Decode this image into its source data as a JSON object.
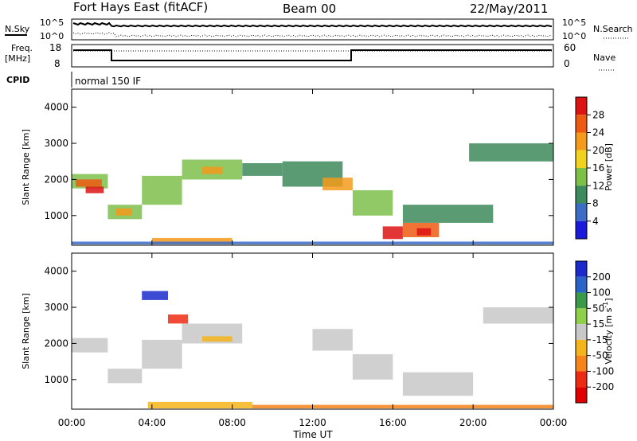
{
  "header": {
    "station": "Fort Hays East (fitACF)",
    "beam": "Beam 00",
    "date": "22/May/2011"
  },
  "noise_panel": {
    "left_label": "N.Sky",
    "right_label": "N.Search",
    "left_ticks": [
      "10^5",
      "10^0"
    ],
    "right_ticks": [
      "10^5",
      "10^0"
    ]
  },
  "freq_panel": {
    "left_label_1": "Freq.",
    "left_label_2": "[MHz]",
    "right_label": "Nave",
    "left_ticks": [
      "18",
      "8"
    ],
    "right_ticks": [
      "60",
      "0"
    ]
  },
  "cpid_panel": {
    "label": "CPID",
    "value": "normal 150 IF"
  },
  "axes": {
    "ylabel": "Slant Range [km]",
    "xlabel": "Time UT",
    "x_ticks": [
      "00:00",
      "04:00",
      "08:00",
      "12:00",
      "16:00",
      "20:00",
      "00:00"
    ],
    "y_ticks": [
      "1000",
      "2000",
      "3000",
      "4000"
    ]
  },
  "power_scale": {
    "label": "Power [dB]",
    "ticks": [
      "4",
      "8",
      "12",
      "16",
      "20",
      "24",
      "28"
    ],
    "colors": [
      "#1a1adc",
      "#3a6cc8",
      "#3d8a5c",
      "#7cc04a",
      "#f2d21a",
      "#f59a1a",
      "#ee5a12",
      "#dd1212"
    ]
  },
  "velocity_scale": {
    "label": "Velocity [m s",
    "label_sup": "-1",
    "label_tail": "]",
    "ticks": [
      "200",
      "100",
      "50",
      "15",
      "-15",
      "-50",
      "-100",
      "-200"
    ],
    "colors": [
      "#1a2acc",
      "#2a64c8",
      "#3a9a4a",
      "#8ed04a",
      "#c8c8c8",
      "#f5b41a",
      "#f5841a",
      "#ee2a12",
      "#e00000"
    ]
  },
  "chart_data": [
    {
      "type": "heatmap",
      "title": "Power",
      "x_unit": "hours UT",
      "y_unit": "km",
      "xlim": [
        0,
        24
      ],
      "ylim": [
        180,
        4500
      ],
      "bands": [
        {
          "t0": 0,
          "t1": 1.8,
          "r0": 1750,
          "r1": 2150,
          "level": 3
        },
        {
          "t0": 0.2,
          "t1": 1.5,
          "r0": 1800,
          "r1": 2000,
          "level": 6
        },
        {
          "t0": 0.7,
          "t1": 1.6,
          "r0": 1620,
          "r1": 1800,
          "level": 7
        },
        {
          "t0": 1.8,
          "t1": 3.5,
          "r0": 900,
          "r1": 1300,
          "level": 3
        },
        {
          "t0": 2.2,
          "t1": 3.0,
          "r0": 1000,
          "r1": 1200,
          "level": 5
        },
        {
          "t0": 3.5,
          "t1": 5.5,
          "r0": 1300,
          "r1": 2100,
          "level": 3
        },
        {
          "t0": 5.5,
          "t1": 8.5,
          "r0": 2000,
          "r1": 2550,
          "level": 3
        },
        {
          "t0": 6.5,
          "t1": 7.5,
          "r0": 2150,
          "r1": 2350,
          "level": 5
        },
        {
          "t0": 8.5,
          "t1": 10.5,
          "r0": 2100,
          "r1": 2450,
          "level": 2
        },
        {
          "t0": 10.5,
          "t1": 13.5,
          "r0": 1800,
          "r1": 2500,
          "level": 2
        },
        {
          "t0": 12.5,
          "t1": 14,
          "r0": 1700,
          "r1": 2050,
          "level": 5
        },
        {
          "t0": 14,
          "t1": 16,
          "r0": 1000,
          "r1": 1700,
          "level": 3
        },
        {
          "t0": 15.5,
          "t1": 16.5,
          "r0": 350,
          "r1": 700,
          "level": 7
        },
        {
          "t0": 16.5,
          "t1": 18.3,
          "r0": 400,
          "r1": 800,
          "level": 6
        },
        {
          "t0": 17.2,
          "t1": 17.9,
          "r0": 450,
          "r1": 650,
          "level": 7
        },
        {
          "t0": 16.5,
          "t1": 21.0,
          "r0": 800,
          "r1": 1300,
          "level": 2
        },
        {
          "t0": 19.8,
          "t1": 24,
          "r0": 2500,
          "r1": 3000,
          "level": 2
        },
        {
          "t0": 4,
          "t1": 8,
          "r0": 200,
          "r1": 380,
          "level": 5
        },
        {
          "t0": 0,
          "t1": 24,
          "r0": 200,
          "r1": 280,
          "level": 1
        }
      ]
    },
    {
      "type": "heatmap",
      "title": "Velocity",
      "x_unit": "hours UT",
      "y_unit": "km",
      "xlim": [
        0,
        24
      ],
      "ylim": [
        180,
        4500
      ],
      "bands": [
        {
          "t0": 0,
          "t1": 1.8,
          "r0": 1750,
          "r1": 2150,
          "level": 4
        },
        {
          "t0": 1.8,
          "t1": 3.5,
          "r0": 900,
          "r1": 1300,
          "level": 4
        },
        {
          "t0": 3.5,
          "t1": 5.5,
          "r0": 1300,
          "r1": 2100,
          "level": 4
        },
        {
          "t0": 5.5,
          "t1": 8.5,
          "r0": 2000,
          "r1": 2550,
          "level": 4
        },
        {
          "t0": 6.5,
          "t1": 8.0,
          "r0": 2050,
          "r1": 2200,
          "level": 5
        },
        {
          "t0": 12.0,
          "t1": 14.0,
          "r0": 1800,
          "r1": 2400,
          "level": 4
        },
        {
          "t0": 14,
          "t1": 16,
          "r0": 1000,
          "r1": 1700,
          "level": 4
        },
        {
          "t0": 16.5,
          "t1": 20.0,
          "r0": 550,
          "r1": 1200,
          "level": 4
        },
        {
          "t0": 20.5,
          "t1": 24,
          "r0": 2550,
          "r1": 3000,
          "level": 4
        },
        {
          "t0": 3.5,
          "t1": 4.8,
          "r0": 3200,
          "r1": 3450,
          "level": 0
        },
        {
          "t0": 4.8,
          "t1": 5.8,
          "r0": 2550,
          "r1": 2800,
          "level": 7
        },
        {
          "t0": 3.8,
          "t1": 9.0,
          "r0": 200,
          "r1": 380,
          "level": 5
        },
        {
          "t0": 9.0,
          "t1": 24,
          "r0": 200,
          "r1": 300,
          "level": 6
        }
      ]
    }
  ]
}
